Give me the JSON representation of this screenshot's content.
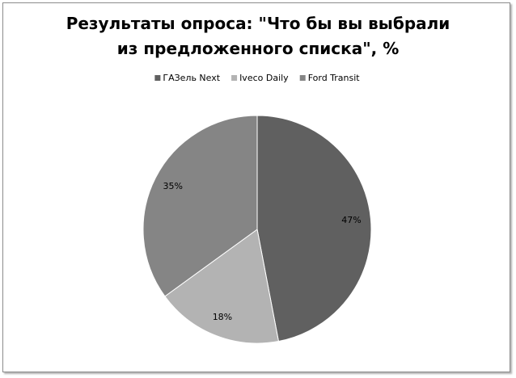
{
  "chart_data": {
    "type": "pie",
    "title": "Результаты опроса: \"Что бы вы выбрали из предложенного списка\", %",
    "categories": [
      "ГАЗель Next",
      "Iveco Daily",
      "Ford Transit"
    ],
    "values": [
      47,
      18,
      35
    ],
    "value_labels": [
      "47%",
      "18%",
      "35%"
    ],
    "colors": [
      "#606060",
      "#b3b3b3",
      "#858585"
    ],
    "legend": "top"
  }
}
